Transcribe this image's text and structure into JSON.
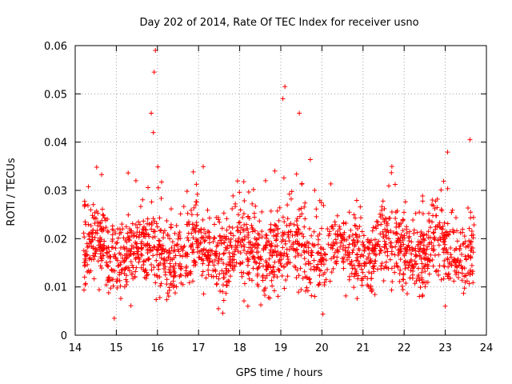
{
  "chart_data": {
    "type": "scatter",
    "title": "Day 202 of 2014, Rate Of TEC Index for receiver usno",
    "xlabel": "GPS time / hours",
    "ylabel": "ROTI / TECUs",
    "xlim": [
      14,
      24
    ],
    "ylim": [
      0,
      0.06
    ],
    "xticks": [
      "14",
      "15",
      "16",
      "17",
      "18",
      "19",
      "20",
      "21",
      "22",
      "23",
      "24"
    ],
    "yticks": [
      "0",
      "0.01",
      "0.02",
      "0.03",
      "0.04",
      "0.05",
      "0.06"
    ],
    "grid": true,
    "marker": "+",
    "series_color": "#ff0000",
    "series": [
      {
        "name": "ROTI",
        "x_start": 14.2,
        "x_end": 23.7,
        "approx_value_range": [
          0.003,
          0.059
        ],
        "typical_band": [
          0.01,
          0.025
        ],
        "notable_points": [
          {
            "x": 15.95,
            "y": 0.059
          },
          {
            "x": 15.92,
            "y": 0.0545
          },
          {
            "x": 19.1,
            "y": 0.0515
          },
          {
            "x": 19.05,
            "y": 0.049
          },
          {
            "x": 15.85,
            "y": 0.046
          },
          {
            "x": 19.45,
            "y": 0.046
          },
          {
            "x": 23.6,
            "y": 0.0405
          },
          {
            "x": 15.9,
            "y": 0.042
          },
          {
            "x": 14.95,
            "y": 0.0035
          },
          {
            "x": 18.2,
            "y": 0.006
          },
          {
            "x": 23.0,
            "y": 0.006
          }
        ]
      }
    ]
  }
}
